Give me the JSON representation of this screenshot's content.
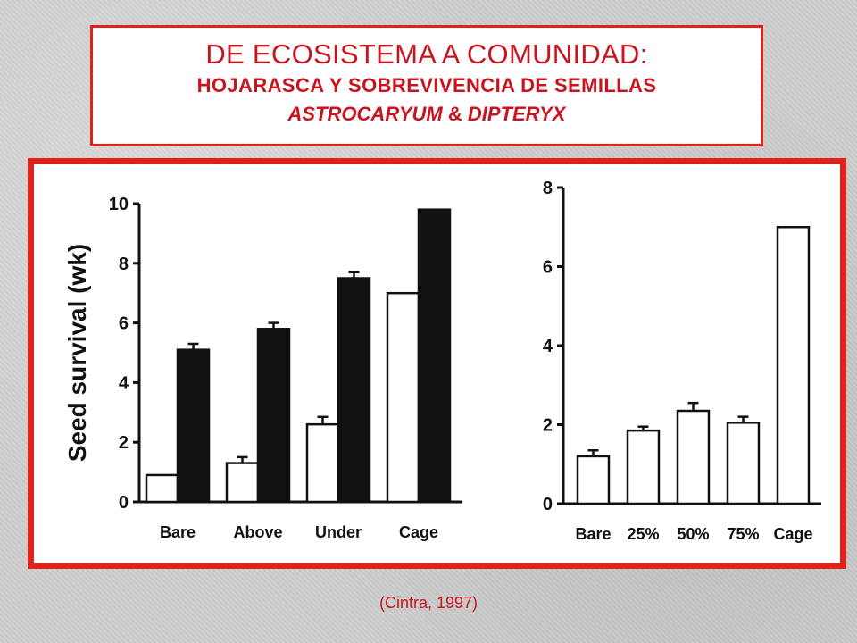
{
  "title": {
    "line1": "DE ECOSISTEMA A COMUNIDAD:",
    "line2": "HOJARASCA Y SOBREVIVENCIA DE SEMILLAS",
    "line3_a": "ASTROCARYUM",
    "line3_amp": " & ",
    "line3_b": "DIPTERYX"
  },
  "citation": "(Cintra, 1997)",
  "colors": {
    "accent": "#e0221b",
    "text_red": "#c8141e",
    "bar_dark": "#111111",
    "bar_light": "#ffffff"
  },
  "chart_data": [
    {
      "type": "bar",
      "categories": [
        "Bare",
        "Above",
        "Under",
        "Cage"
      ],
      "series": [
        {
          "values": [
            0.9,
            1.3,
            2.6,
            7.0
          ],
          "errors": [
            0.0,
            0.2,
            0.25,
            0.0
          ],
          "color": "#ffffff"
        },
        {
          "values": [
            5.1,
            5.8,
            7.5,
            9.8
          ],
          "errors": [
            0.2,
            0.2,
            0.2,
            0.0
          ],
          "color": "#111111"
        }
      ],
      "ylabel": "Seed survival (wk)",
      "ylim": [
        0,
        10
      ],
      "yticks": [
        0,
        2,
        4,
        6,
        8,
        10
      ],
      "grid": false
    },
    {
      "type": "bar",
      "categories": [
        "Bare",
        "25%",
        "50%",
        "75%",
        "Cage"
      ],
      "series": [
        {
          "values": [
            1.2,
            1.85,
            2.35,
            2.05,
            7.0
          ],
          "errors": [
            0.15,
            0.1,
            0.2,
            0.15,
            0.0
          ],
          "color": "#ffffff"
        }
      ],
      "ylim": [
        0,
        8
      ],
      "yticks": [
        0,
        2,
        4,
        6,
        8
      ],
      "grid": false
    }
  ]
}
